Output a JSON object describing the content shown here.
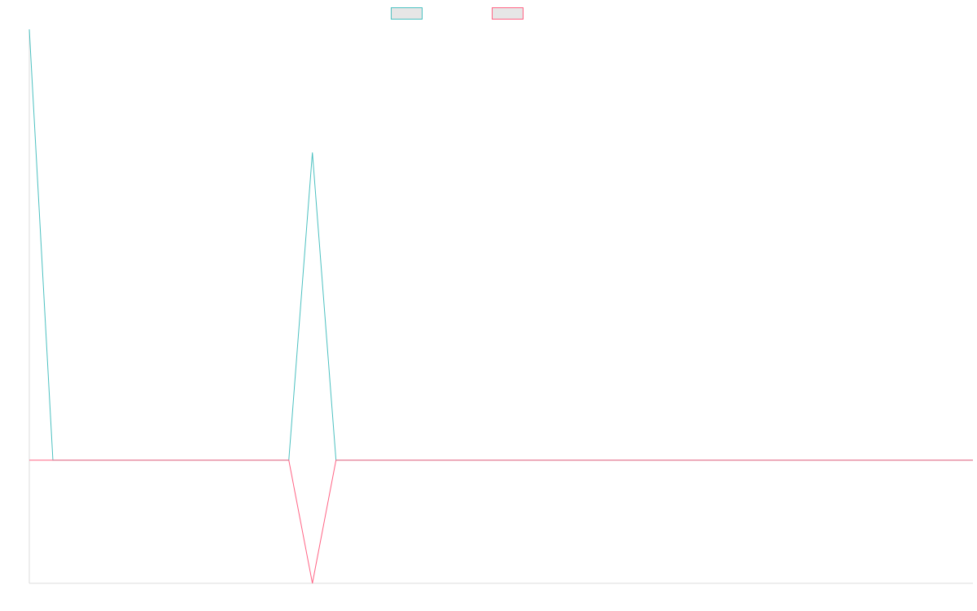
{
  "chart_data": {
    "type": "line",
    "title": "",
    "xlabel": "",
    "ylabel": "",
    "x": [
      0,
      1,
      2,
      3,
      4,
      5,
      6,
      7,
      8,
      9,
      10,
      11,
      12,
      13,
      14,
      15,
      16,
      17,
      18,
      19,
      20,
      21,
      22,
      23,
      24,
      25,
      26,
      27,
      28,
      29,
      30,
      31,
      32,
      33,
      34,
      35,
      36,
      37,
      38,
      39,
      40
    ],
    "xlim": [
      0,
      40
    ],
    "ylim": [
      -1,
      3.5
    ],
    "grid": false,
    "legend": "top-center",
    "series": [
      {
        "name": "",
        "color": "#4bc0c0",
        "values": [
          3.5,
          0,
          0,
          0,
          0,
          0,
          0,
          0,
          0,
          0,
          0,
          0,
          2.5,
          0,
          0,
          0,
          0,
          0,
          0,
          0,
          0,
          0,
          0,
          0,
          0,
          0,
          0,
          0,
          0,
          0,
          0,
          0,
          0,
          0,
          0,
          0,
          0,
          0,
          0,
          0,
          0
        ]
      },
      {
        "name": "",
        "color": "#ff6384",
        "values": [
          0,
          0,
          0,
          0,
          0,
          0,
          0,
          0,
          0,
          0,
          0,
          0,
          -1,
          0,
          0,
          0,
          0,
          0,
          0,
          0,
          0,
          0,
          0,
          0,
          0,
          0,
          0,
          0,
          0,
          0,
          0,
          0,
          0,
          0,
          0,
          0,
          0,
          0,
          0,
          0,
          0
        ]
      }
    ]
  }
}
